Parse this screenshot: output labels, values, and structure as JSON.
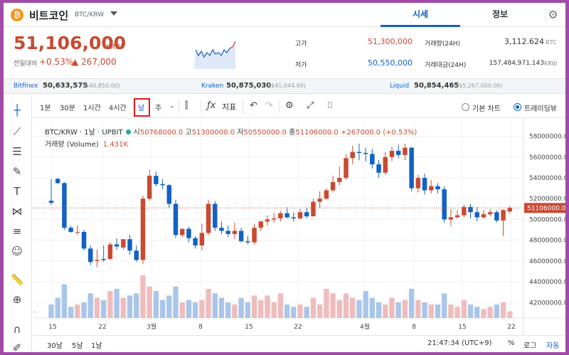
{
  "header": {
    "coin_logo": "₿",
    "coin_name": "비트코인",
    "pair": "BTC/KRW",
    "tabs": [
      "시세",
      "정보"
    ]
  },
  "price": {
    "current": "51,106,000",
    "unit": "KRW",
    "prev_label": "전일대비",
    "change_pct": "+0.53%",
    "change_amt": "▲ 267,000",
    "high_label": "고가",
    "high": "51,300,000",
    "low_label": "저가",
    "low": "50,550,000",
    "vol_label": "거래량(24H)",
    "vol": "3,112.624",
    "vol_unit": "BTC",
    "amt_label": "거래대금(24H)",
    "amt": "157,484,971,143",
    "amt_unit": "KRW"
  },
  "exchanges": [
    {
      "name": "Bitfinex",
      "price": "50,633,575",
      "usd": "($40,850.00)"
    },
    {
      "name": "Kraken",
      "price": "50,875,030",
      "usd": "($41,044.80)"
    },
    {
      "name": "Liquid",
      "price": "50,854,465",
      "usd": "($5,267,000.00)"
    }
  ],
  "toolbar": {
    "timeframes": [
      "1분",
      "30분",
      "1시간",
      "4시간",
      "날",
      "주"
    ],
    "indicator_label": "지표",
    "basic_chart": "기본 차트",
    "tradingview": "트레이딩뷰"
  },
  "legend": {
    "symbol": "BTC/KRW · 1날 · UPBIT",
    "o_label": "시",
    "o": "50768000.0",
    "h_label": "고",
    "h": "51300000.0",
    "l_label": "저",
    "l": "50550000.0",
    "c_label": "종",
    "c": "51106000.0",
    "chg": "+267000.0 (+0.53%)",
    "volume_label": "거래량 (Volume)",
    "volume": "1.431K"
  },
  "bottom": {
    "ranges": [
      "30날",
      "5날",
      "1날"
    ],
    "time": "21:47:34 (UTC+9)",
    "pct": "%",
    "log": "로그",
    "auto": "자동"
  },
  "colors": {
    "up": "#c84a31",
    "down": "#1261c4",
    "vol_up": "#efbcbc",
    "vol_down": "#a9c6ea"
  },
  "chart_data": {
    "type": "candlestick",
    "x_tick_labels": [
      "15",
      "22",
      "3월",
      "8",
      "15",
      "22",
      "4월",
      "8",
      "15",
      "22"
    ],
    "y_tick_labels": [
      "42000000.0",
      "44000000.0",
      "46000000.0",
      "48000000.0",
      "50000000.0",
      "52000000.0",
      "54000000.0",
      "56000000.0",
      "58000000.0"
    ],
    "ylim": [
      41200000,
      59000000
    ],
    "last_price_label": "51106000.0",
    "candles": [
      [
        51800000,
        53900000,
        51600000,
        51400000,
        0.6
      ],
      [
        53900000,
        54000000,
        53500000,
        53400000,
        0.9
      ],
      [
        53500000,
        53600000,
        49200000,
        49000000,
        1.5
      ],
      [
        49200000,
        49400000,
        48800000,
        48700000,
        0.5
      ],
      [
        48800000,
        49400000,
        48800000,
        48500000,
        0.6
      ],
      [
        48800000,
        49000000,
        47200000,
        47000000,
        0.7
      ],
      [
        47200000,
        47500000,
        45900000,
        45600000,
        1.1
      ],
      [
        46000000,
        47100000,
        46100000,
        45400000,
        0.9
      ],
      [
        46200000,
        47500000,
        46100000,
        45900000,
        0.8
      ],
      [
        46200000,
        47800000,
        47600000,
        46100000,
        1.2
      ],
      [
        47600000,
        48200000,
        47400000,
        47100000,
        1.3
      ],
      [
        47300000,
        48100000,
        48100000,
        47100000,
        0.9
      ],
      [
        48100000,
        48500000,
        47000000,
        46600000,
        1.0
      ],
      [
        47000000,
        47500000,
        46100000,
        45900000,
        1.1
      ],
      [
        46100000,
        52300000,
        52000000,
        45700000,
        1.9
      ],
      [
        52000000,
        54800000,
        54200000,
        51800000,
        1.4
      ],
      [
        54200000,
        54600000,
        53400000,
        53200000,
        1.2
      ],
      [
        53400000,
        53900000,
        53300000,
        52900000,
        0.8
      ],
      [
        53300000,
        53400000,
        51500000,
        51100000,
        1.0
      ],
      [
        51500000,
        51900000,
        48500000,
        48200000,
        1.4
      ],
      [
        48500000,
        48900000,
        49100000,
        48300000,
        0.7
      ],
      [
        49100000,
        49300000,
        48200000,
        47800000,
        0.8
      ],
      [
        48200000,
        48400000,
        47500000,
        47200000,
        0.7
      ],
      [
        47500000,
        49600000,
        48700000,
        47000000,
        0.8
      ],
      [
        48700000,
        51900000,
        51500000,
        48500000,
        1.3
      ],
      [
        51500000,
        51800000,
        49200000,
        48900000,
        1.1
      ],
      [
        49200000,
        49800000,
        48900000,
        48600000,
        0.9
      ],
      [
        48900000,
        49400000,
        48600000,
        48300000,
        0.7
      ],
      [
        48600000,
        49700000,
        48900000,
        48100000,
        0.6
      ],
      [
        48900000,
        49200000,
        47900000,
        47800000,
        0.9
      ],
      [
        47900000,
        48400000,
        47800000,
        47600000,
        0.7
      ],
      [
        47800000,
        49600000,
        49200000,
        47600000,
        1.0
      ],
      [
        49200000,
        49900000,
        49800000,
        48900000,
        0.8
      ],
      [
        49800000,
        50400000,
        50000000,
        49400000,
        1.0
      ],
      [
        50000000,
        50600000,
        50100000,
        49700000,
        0.7
      ],
      [
        50100000,
        50800000,
        50600000,
        49800000,
        1.1
      ],
      [
        50600000,
        51200000,
        50200000,
        50100000,
        0.6
      ],
      [
        50200000,
        50700000,
        50100000,
        49800000,
        0.5
      ],
      [
        50100000,
        51000000,
        50700000,
        50000000,
        0.6
      ],
      [
        50700000,
        51100000,
        50300000,
        50100000,
        0.5
      ],
      [
        50300000,
        52000000,
        51700000,
        50300000,
        0.9
      ],
      [
        51700000,
        52700000,
        52000000,
        51100000,
        0.6
      ],
      [
        52000000,
        53000000,
        52800000,
        51900000,
        1.3
      ],
      [
        52800000,
        54200000,
        53600000,
        52600000,
        1.1
      ],
      [
        53600000,
        55100000,
        54000000,
        53300000,
        0.8
      ],
      [
        54000000,
        56300000,
        55900000,
        53800000,
        1.1
      ],
      [
        55900000,
        57100000,
        56500000,
        55300000,
        0.9
      ],
      [
        56500000,
        57300000,
        56400000,
        55700000,
        0.8
      ],
      [
        56400000,
        56900000,
        56300000,
        55600000,
        1.2
      ],
      [
        56300000,
        56800000,
        55300000,
        54900000,
        0.9
      ],
      [
        55300000,
        55700000,
        54500000,
        54000000,
        0.7
      ],
      [
        54500000,
        56500000,
        56000000,
        54300000,
        0.6
      ],
      [
        56000000,
        57000000,
        56600000,
        55600000,
        0.9
      ],
      [
        56600000,
        57200000,
        56200000,
        55900000,
        0.7
      ],
      [
        56200000,
        57300000,
        56900000,
        55700000,
        0.8
      ],
      [
        56900000,
        57000000,
        53000000,
        52700000,
        1.3
      ],
      [
        53000000,
        54300000,
        54000000,
        52600000,
        0.8
      ],
      [
        54000000,
        54400000,
        52800000,
        52400000,
        0.7
      ],
      [
        52800000,
        53800000,
        53200000,
        52500000,
        0.6
      ],
      [
        53200000,
        53500000,
        52900000,
        52500000,
        0.6
      ],
      [
        52900000,
        53200000,
        50000000,
        49700000,
        1.1
      ],
      [
        50000000,
        51000000,
        50200000,
        49400000,
        0.6
      ],
      [
        50200000,
        50900000,
        50400000,
        50100000,
        0.5
      ],
      [
        50400000,
        51400000,
        51200000,
        50200000,
        0.8
      ],
      [
        51200000,
        51500000,
        50700000,
        50100000,
        0.6
      ],
      [
        50700000,
        51200000,
        50200000,
        49800000,
        0.5
      ],
      [
        50200000,
        50900000,
        50500000,
        50100000,
        0.4
      ],
      [
        50500000,
        51000000,
        50700000,
        50300000,
        0.5
      ],
      [
        50700000,
        50900000,
        49900000,
        49700000,
        0.6
      ],
      [
        49900000,
        51000000,
        50900000,
        48400000,
        0.7
      ],
      [
        50768000,
        51300000,
        51106000,
        50550000,
        0.3
      ]
    ]
  }
}
